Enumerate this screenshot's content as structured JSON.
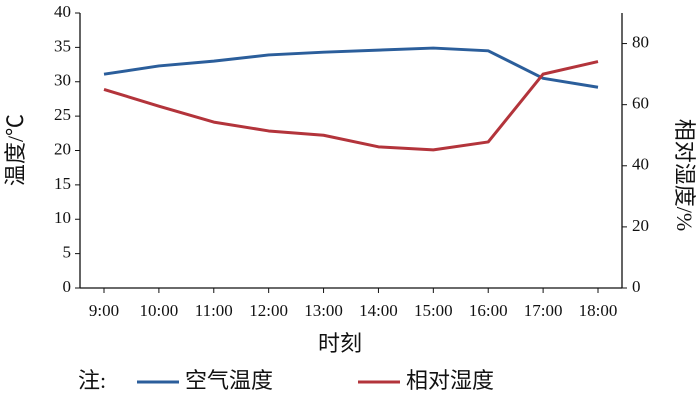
{
  "chart_data": {
    "type": "line",
    "categories": [
      "9:00",
      "10:00",
      "11:00",
      "12:00",
      "13:00",
      "14:00",
      "15:00",
      "16:00",
      "17:00",
      "18:00"
    ],
    "series": [
      {
        "name": "空气温度",
        "color": "#2b5e9b",
        "values": [
          31.1,
          32.3,
          33.0,
          33.9,
          34.3,
          34.6,
          34.9,
          34.5,
          30.5,
          29.2
        ]
      },
      {
        "name": "相对湿度",
        "color": "#b3343b",
        "axis": "y2",
        "values": [
          65.0,
          59.5,
          54.3,
          51.4,
          50.0,
          46.2,
          45.2,
          47.8,
          70.0,
          74.1
        ]
      }
    ],
    "ylim": [
      0,
      40
    ],
    "yticks": [
      0,
      5,
      10,
      15,
      20,
      25,
      30,
      35,
      40
    ],
    "y2lim": [
      0,
      90
    ],
    "y2ticks": [
      0,
      20,
      40,
      60,
      80
    ],
    "y_label": "温度/℃",
    "y2_label": "相对湿度/%",
    "x_label": "时刻",
    "legend_title": "注:"
  }
}
